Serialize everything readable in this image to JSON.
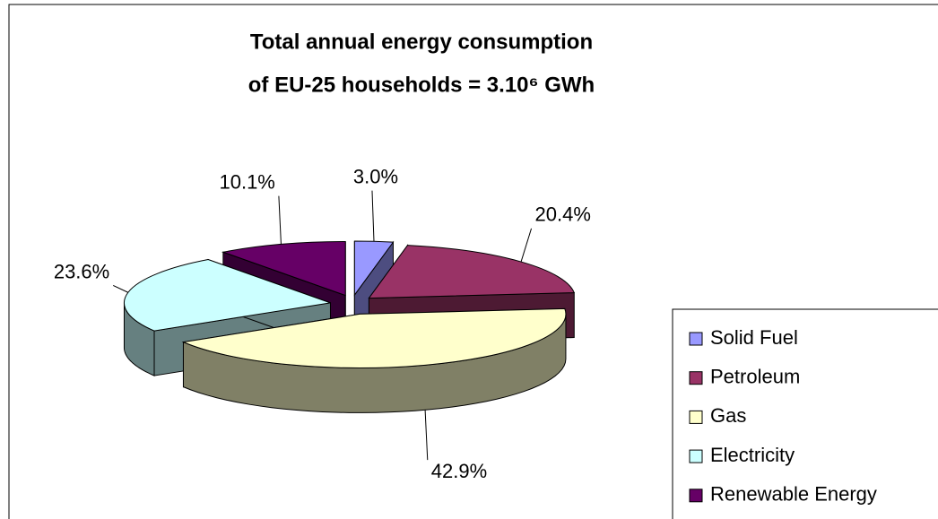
{
  "chart_data": {
    "type": "pie3d",
    "title": "Total annual energy consumption",
    "subtitle": "of EU-25 households = 3.10⁶ GWh",
    "categories": [
      "Solid Fuel",
      "Petroleum",
      "Gas",
      "Electricity",
      "Renewable Energy"
    ],
    "values": [
      3.0,
      20.4,
      42.9,
      23.6,
      10.1
    ],
    "value_labels": [
      "3.0%",
      "20.4%",
      "42.9%",
      "23.6%",
      "10.1%"
    ],
    "colors": [
      "#9999ff",
      "#993366",
      "#ffffcc",
      "#ccffff",
      "#660066"
    ],
    "legend": "right"
  }
}
